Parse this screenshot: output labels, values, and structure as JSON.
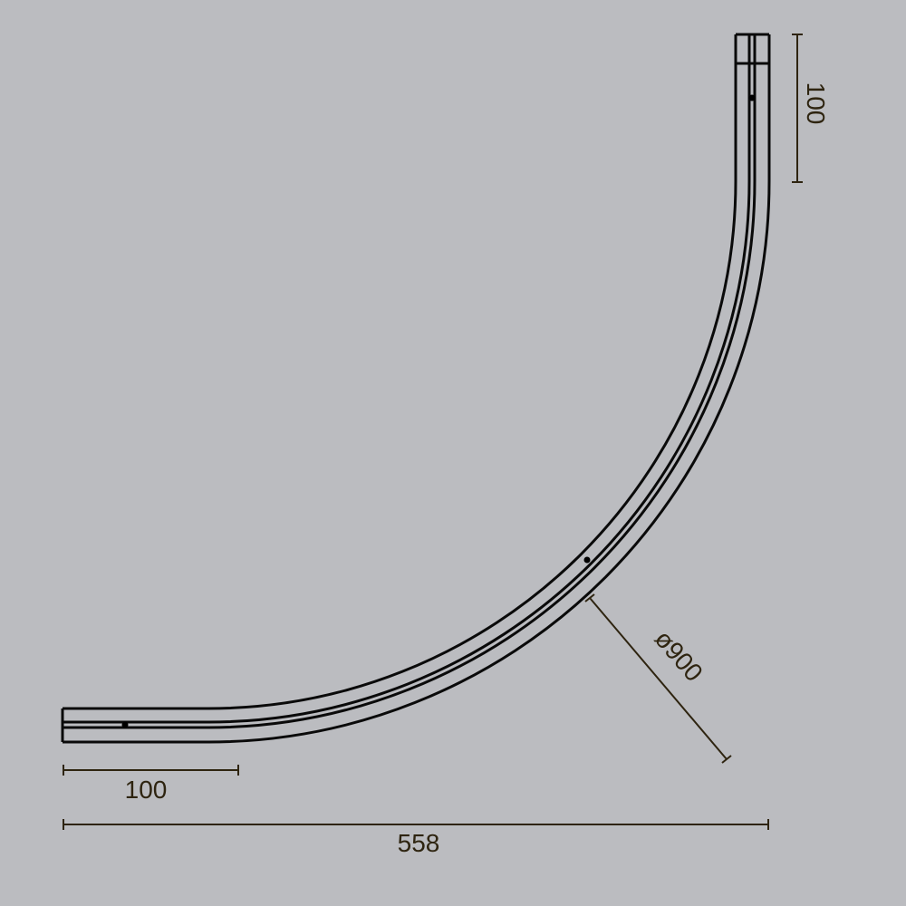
{
  "diagram": {
    "background_color": "#bbbcc0",
    "line_color": "#0a0a0a",
    "dimension_color": "#2e2410",
    "dimensions": {
      "vertical_end_length": "100",
      "horizontal_end_length": "100",
      "overall_width": "558",
      "diameter": "ø900"
    }
  }
}
